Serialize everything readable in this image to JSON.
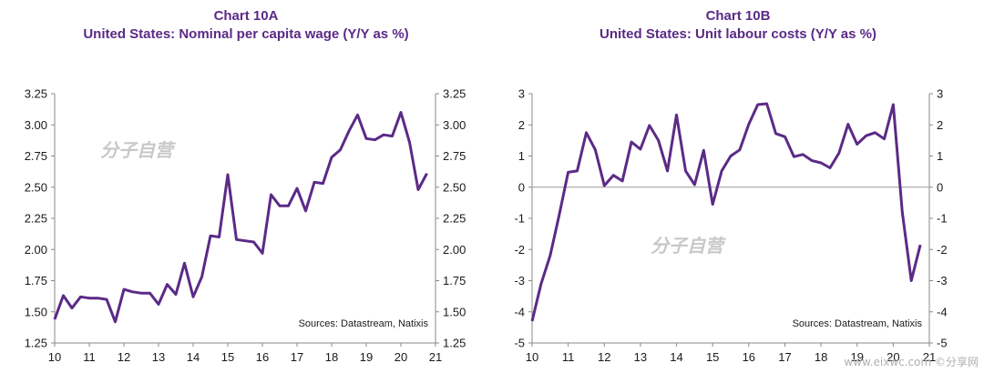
{
  "chart_data": [
    {
      "type": "line",
      "chart_label": "Chart 10A",
      "title": "United States: Nominal per capita wage (Y/Y as %)",
      "ylim": [
        1.25,
        3.25
      ],
      "y_ticks": [
        "3.25",
        "3.00",
        "2.75",
        "2.50",
        "2.25",
        "2.00",
        "1.75",
        "1.50",
        "1.25"
      ],
      "y_tick_values": [
        3.25,
        3.0,
        2.75,
        2.5,
        2.25,
        2.0,
        1.75,
        1.5,
        1.25
      ],
      "xlim": [
        10,
        21
      ],
      "x_ticks": [
        "10",
        "11",
        "12",
        "13",
        "14",
        "15",
        "16",
        "17",
        "18",
        "19",
        "20",
        "21"
      ],
      "x_tick_values": [
        10,
        11,
        12,
        13,
        14,
        15,
        16,
        17,
        18,
        19,
        20,
        21
      ],
      "zero_line": false,
      "line_color": "#5b2a86",
      "source": "Sources: Datastream, Natixis",
      "watermark": "分子自营",
      "x": [
        10.0,
        10.25,
        10.5,
        10.75,
        11.0,
        11.25,
        11.5,
        11.75,
        12.0,
        12.25,
        12.5,
        12.75,
        13.0,
        13.25,
        13.5,
        13.75,
        14.0,
        14.25,
        14.5,
        14.75,
        15.0,
        15.25,
        15.5,
        15.75,
        16.0,
        16.25,
        16.5,
        16.75,
        17.0,
        17.25,
        17.5,
        17.75,
        18.0,
        18.25,
        18.5,
        18.75,
        19.0,
        19.25,
        19.5,
        19.75,
        20.0,
        20.25,
        20.5,
        20.75
      ],
      "y": [
        1.44,
        1.63,
        1.53,
        1.62,
        1.61,
        1.61,
        1.6,
        1.42,
        1.68,
        1.66,
        1.65,
        1.65,
        1.56,
        1.72,
        1.64,
        1.89,
        1.62,
        1.78,
        2.11,
        2.1,
        2.6,
        2.08,
        2.07,
        2.06,
        1.97,
        2.44,
        2.35,
        2.35,
        2.49,
        2.31,
        2.54,
        2.53,
        2.74,
        2.8,
        2.95,
        3.08,
        2.89,
        2.88,
        2.92,
        2.91,
        3.1,
        2.86,
        2.48,
        2.61
      ]
    },
    {
      "type": "line",
      "chart_label": "Chart 10B",
      "title": "United States: Unit labour costs (Y/Y as %)",
      "ylim": [
        -5,
        3
      ],
      "y_ticks": [
        "3",
        "2",
        "1",
        "0",
        "-1",
        "-2",
        "-3",
        "-4",
        "-5"
      ],
      "y_tick_values": [
        3,
        2,
        1,
        0,
        -1,
        -2,
        -3,
        -4,
        -5
      ],
      "xlim": [
        10,
        21
      ],
      "x_ticks": [
        "10",
        "11",
        "12",
        "13",
        "14",
        "15",
        "16",
        "17",
        "18",
        "19",
        "20",
        "21"
      ],
      "x_tick_values": [
        10,
        11,
        12,
        13,
        14,
        15,
        16,
        17,
        18,
        19,
        20,
        21
      ],
      "zero_line": true,
      "line_color": "#5b2a86",
      "source": "Sources: Datastream, Natixis",
      "watermark": "分子自营",
      "x": [
        10.0,
        10.25,
        10.5,
        10.75,
        11.0,
        11.25,
        11.5,
        11.75,
        12.0,
        12.25,
        12.5,
        12.75,
        13.0,
        13.25,
        13.5,
        13.75,
        14.0,
        14.25,
        14.5,
        14.75,
        15.0,
        15.25,
        15.5,
        15.75,
        16.0,
        16.25,
        16.5,
        16.75,
        17.0,
        17.25,
        17.5,
        17.75,
        18.0,
        18.25,
        18.5,
        18.75,
        19.0,
        19.25,
        19.5,
        19.75,
        20.0,
        20.25,
        20.5,
        20.75
      ],
      "y": [
        -4.3,
        -3.1,
        -2.2,
        -0.9,
        0.48,
        0.52,
        1.75,
        1.2,
        0.05,
        0.38,
        0.2,
        1.45,
        1.22,
        1.98,
        1.5,
        0.52,
        2.32,
        0.52,
        0.08,
        1.18,
        -0.55,
        0.52,
        1.0,
        1.2,
        2.02,
        2.65,
        2.68,
        1.72,
        1.62,
        0.98,
        1.05,
        0.85,
        0.78,
        0.62,
        1.1,
        2.02,
        1.38,
        1.65,
        1.75,
        1.55,
        2.65,
        -0.8,
        -3.0,
        -1.85
      ]
    }
  ],
  "corner_watermark": "www.eixwc.com ©分享网"
}
